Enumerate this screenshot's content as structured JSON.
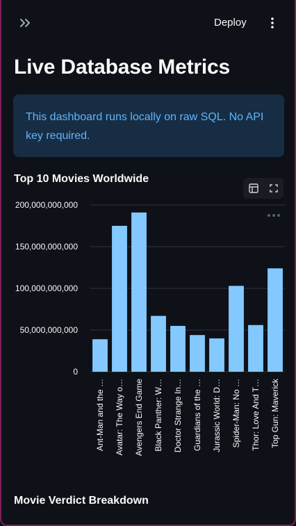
{
  "header": {
    "deploy_label": "Deploy"
  },
  "page": {
    "title": "Live Database Metrics"
  },
  "info": {
    "message": "This dashboard runs locally on raw SQL. No API key required."
  },
  "chart": {
    "title": "Top 10 Movies Worldwide"
  },
  "section2": {
    "title": "Movie Verdict Breakdown"
  },
  "colors": {
    "background": "#0e1117",
    "bar": "#83c9ff",
    "info_bg": "#172d43",
    "info_text": "#61b4ff",
    "accent_border": "#7a1f5a"
  },
  "chart_data": {
    "type": "bar",
    "title": "Top 10 Movies Worldwide",
    "categories": [
      "Ant-Man and the …",
      "Avatar: The Way o…",
      "Avengers End Game",
      "Black Panther: W…",
      "Doctor Strange In…",
      "Guardians of the …",
      "Jurassic World: D…",
      "Spider-Man: No …",
      "Thor: Love And T…",
      "Top Gun: Maverick"
    ],
    "values": [
      39000000000,
      175000000000,
      191000000000,
      67000000000,
      55000000000,
      44000000000,
      40000000000,
      103000000000,
      56000000000,
      124000000000
    ],
    "yticks": [
      "0",
      "50,000,000,000",
      "100,000,000,000",
      "150,000,000,000",
      "200,000,000,000"
    ],
    "ylim": [
      0,
      200000000000
    ],
    "grid": true,
    "xlabel": "",
    "ylabel": ""
  }
}
